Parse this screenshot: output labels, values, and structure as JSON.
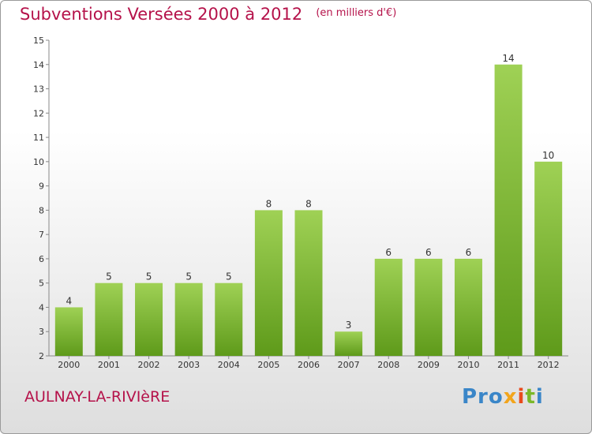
{
  "chart_data": {
    "type": "bar",
    "title": "Subventions Versées 2000 à 2012",
    "subtitle": "(en milliers d'€)",
    "categories": [
      "2000",
      "2001",
      "2002",
      "2003",
      "2004",
      "2005",
      "2006",
      "2007",
      "2008",
      "2009",
      "2010",
      "2011",
      "2012"
    ],
    "values": [
      4,
      5,
      5,
      5,
      5,
      8,
      8,
      3,
      6,
      6,
      6,
      14,
      10
    ],
    "ylim": [
      2,
      15
    ],
    "yticks": [
      2,
      3,
      4,
      5,
      6,
      7,
      8,
      9,
      10,
      11,
      12,
      13,
      14,
      15
    ],
    "grid": false,
    "colors": {
      "bar_light": "#9fd155",
      "bar_dark": "#5e9a1a",
      "title": "#b5124a"
    }
  },
  "footer": {
    "commune": "AULNAY-LA-RIVIèRE",
    "logo": [
      "Pro",
      "x",
      "i",
      "t",
      "i"
    ]
  }
}
